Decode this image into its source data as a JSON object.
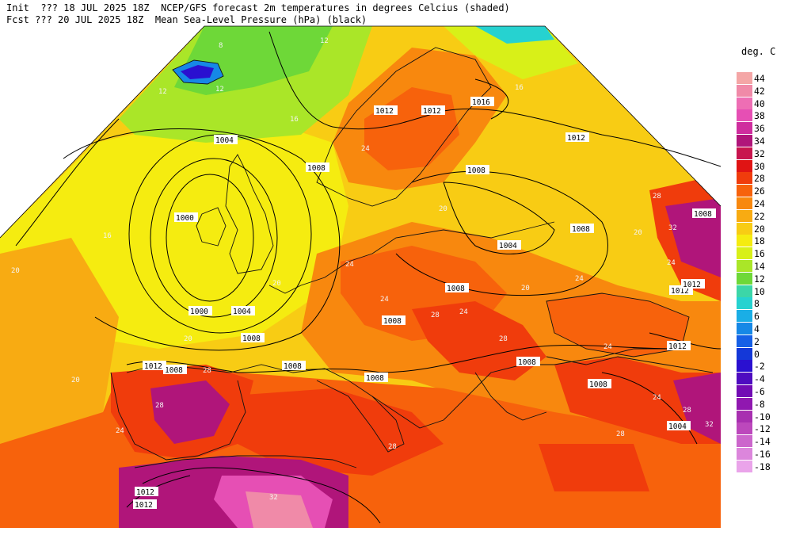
{
  "header": {
    "line1": "Init  ??? 18 JUL 2025 18Z  NCEP/GFS forecast 2m temperatures in degrees Celcius (shaded)",
    "line2": "Fcst ??? 20 JUL 2025 18Z  Mean Sea-Level Pressure (hPa) (black)"
  },
  "legend": {
    "title": "deg. C",
    "items": [
      {
        "value": "44",
        "color": "#f4a6a6"
      },
      {
        "value": "42",
        "color": "#f08aa8"
      },
      {
        "value": "40",
        "color": "#ee6eb4"
      },
      {
        "value": "38",
        "color": "#e64fb4"
      },
      {
        "value": "36",
        "color": "#cf2d9e"
      },
      {
        "value": "34",
        "color": "#b0157a"
      },
      {
        "value": "32",
        "color": "#c8154e"
      },
      {
        "value": "30",
        "color": "#e01414"
      },
      {
        "value": "28",
        "color": "#f03c0c"
      },
      {
        "value": "26",
        "color": "#f7620c"
      },
      {
        "value": "24",
        "color": "#f8880e"
      },
      {
        "value": "22",
        "color": "#f8ab12"
      },
      {
        "value": "20",
        "color": "#f8cc14"
      },
      {
        "value": "18",
        "color": "#f5ec10"
      },
      {
        "value": "16",
        "color": "#d8f018"
      },
      {
        "value": "14",
        "color": "#aae628"
      },
      {
        "value": "12",
        "color": "#6ed838"
      },
      {
        "value": "10",
        "color": "#3cd6a8"
      },
      {
        "value": "8",
        "color": "#26d2d0"
      },
      {
        "value": "6",
        "color": "#1aaee6"
      },
      {
        "value": "4",
        "color": "#1688e6"
      },
      {
        "value": "2",
        "color": "#1660e6"
      },
      {
        "value": "0",
        "color": "#1438d8"
      },
      {
        "value": "-2",
        "color": "#2a10d0"
      },
      {
        "value": "-4",
        "color": "#4e0cc0"
      },
      {
        "value": "-6",
        "color": "#720cb4"
      },
      {
        "value": "-8",
        "color": "#9018b0"
      },
      {
        "value": "-10",
        "color": "#a830b0"
      },
      {
        "value": "-12",
        "color": "#bc48bc"
      },
      {
        "value": "-14",
        "color": "#cc66cc"
      },
      {
        "value": "-16",
        "color": "#dc86dc"
      },
      {
        "value": "-18",
        "color": "#eaa4ea"
      }
    ]
  },
  "map": {
    "pressure_labels": [
      "1016",
      "1012",
      "1012",
      "1012",
      "1008",
      "1008",
      "1008",
      "1008",
      "1008",
      "1008",
      "1008",
      "1008",
      "1008",
      "1008",
      "1008",
      "1008",
      "1004",
      "1004",
      "1004",
      "1004",
      "1000",
      "1000",
      "1012",
      "1012",
      "1012",
      "1012",
      "1012",
      "1012"
    ],
    "temperature_labels": [
      "12",
      "12",
      "12",
      "16",
      "16",
      "16",
      "20",
      "20",
      "20",
      "20",
      "20",
      "20",
      "20",
      "24",
      "24",
      "24",
      "24",
      "24",
      "24",
      "24",
      "24",
      "24",
      "28",
      "28",
      "28",
      "28",
      "28",
      "28",
      "28",
      "28",
      "32",
      "32",
      "32",
      "8"
    ]
  }
}
